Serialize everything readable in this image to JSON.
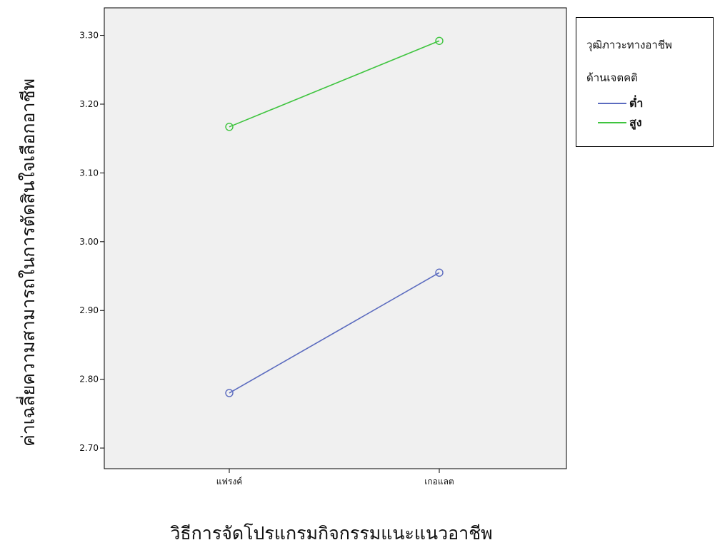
{
  "chart_data": {
    "type": "line",
    "categories": [
      "แฟรงค์",
      "เกอแลต"
    ],
    "xlabel": "วิธีการจัดโปรแกรมกิจกรรมแนะแนวอาชีพ",
    "ylabel": "ค่าเฉลี่ยความสามารถในการตัดสินใจเลือกอาชีพ",
    "ylim": [
      2.67,
      3.34
    ],
    "yticks": [
      "2.70",
      "2.80",
      "2.90",
      "3.00",
      "3.10",
      "3.20",
      "3.30"
    ],
    "legend": {
      "title_line1": "วุฒิภาวะทางอาชีพ",
      "title_line2": "ด้านเจตคติ",
      "placement": "right"
    },
    "series": [
      {
        "name": "ต่ำ",
        "values": [
          2.78,
          2.955
        ],
        "color": "#5b6bbf"
      },
      {
        "name": "สูง",
        "values": [
          3.167,
          3.292
        ],
        "color": "#3ec43e"
      }
    ],
    "grid": false
  },
  "colors": {
    "plot_background": "#f0f0f0",
    "axis": "#000000"
  }
}
